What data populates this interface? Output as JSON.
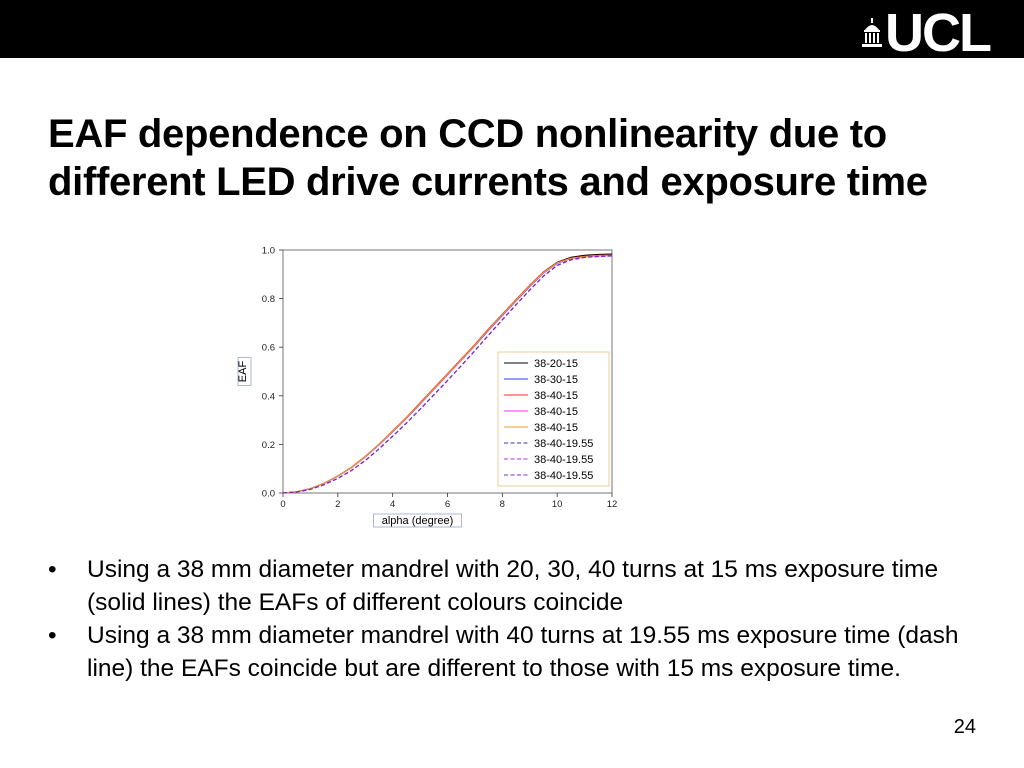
{
  "logo": {
    "text": "UCL",
    "icon": "ucl-portico-icon"
  },
  "slide": {
    "title": "EAF dependence on CCD nonlinearity due to different LED drive currents and exposure time",
    "bullets": [
      "Using a 38 mm diameter mandrel with 20, 30, 40 turns at 15 ms exposure time (solid lines) the EAFs of different colours coincide",
      "Using a 38 mm diameter mandrel with 40 turns at 19.55 ms exposure time (dash line) the EAFs coincide but are different to those with 15 ms exposure time."
    ],
    "bullet_symbol": "•",
    "page_number": "24"
  },
  "chart_data": {
    "type": "line",
    "xlabel": "alpha (degree)",
    "ylabel": "EAF",
    "xlim": [
      0,
      12
    ],
    "ylim": [
      0,
      1.0
    ],
    "xticks": [
      "0",
      "2",
      "4",
      "6",
      "8",
      "10",
      "12"
    ],
    "yticks": [
      "0.0",
      "0.2",
      "0.4",
      "0.6",
      "0.8",
      "1.0"
    ],
    "grid": false,
    "legend_position": "lower-right",
    "x": [
      0,
      0.5,
      1,
      1.5,
      2,
      2.5,
      3,
      3.5,
      4,
      4.5,
      5,
      5.5,
      6,
      6.5,
      7,
      7.5,
      8,
      8.5,
      9,
      9.5,
      10,
      10.5,
      11,
      11.5,
      12
    ],
    "series": [
      {
        "name": "38-20-15",
        "color": "#000000",
        "dash": false,
        "values": [
          0,
          0.005,
          0.018,
          0.04,
          0.07,
          0.105,
          0.15,
          0.2,
          0.255,
          0.31,
          0.37,
          0.43,
          0.49,
          0.55,
          0.61,
          0.675,
          0.735,
          0.795,
          0.855,
          0.91,
          0.95,
          0.97,
          0.978,
          0.982,
          0.983
        ]
      },
      {
        "name": "38-30-15",
        "color": "#2a3ff0",
        "dash": false,
        "values": [
          0,
          0.005,
          0.018,
          0.04,
          0.069,
          0.104,
          0.148,
          0.198,
          0.252,
          0.307,
          0.366,
          0.426,
          0.486,
          0.546,
          0.606,
          0.67,
          0.73,
          0.79,
          0.85,
          0.905,
          0.945,
          0.965,
          0.973,
          0.977,
          0.978
        ]
      },
      {
        "name": "38-40-15",
        "color": "#ff2a2a",
        "dash": false,
        "values": [
          0,
          0.005,
          0.018,
          0.04,
          0.07,
          0.106,
          0.151,
          0.201,
          0.256,
          0.311,
          0.371,
          0.431,
          0.491,
          0.551,
          0.611,
          0.676,
          0.736,
          0.796,
          0.856,
          0.909,
          0.948,
          0.967,
          0.974,
          0.978,
          0.979
        ]
      },
      {
        "name": "38-40-15",
        "color": "#ff2aff",
        "dash": false,
        "values": [
          0,
          0.005,
          0.018,
          0.039,
          0.069,
          0.104,
          0.149,
          0.199,
          0.253,
          0.308,
          0.367,
          0.427,
          0.487,
          0.547,
          0.607,
          0.672,
          0.732,
          0.792,
          0.852,
          0.906,
          0.946,
          0.965,
          0.972,
          0.976,
          0.977
        ]
      },
      {
        "name": "38-40-15",
        "color": "#e89a2a",
        "dash": false,
        "values": [
          0,
          0.005,
          0.018,
          0.04,
          0.07,
          0.105,
          0.15,
          0.2,
          0.254,
          0.309,
          0.368,
          0.428,
          0.488,
          0.548,
          0.608,
          0.673,
          0.733,
          0.793,
          0.853,
          0.907,
          0.947,
          0.966,
          0.973,
          0.977,
          0.978
        ]
      },
      {
        "name": "38-40-19.55",
        "color": "#4a2ab0",
        "dash": true,
        "values": [
          0,
          0.004,
          0.015,
          0.034,
          0.06,
          0.093,
          0.134,
          0.182,
          0.234,
          0.288,
          0.345,
          0.404,
          0.463,
          0.524,
          0.586,
          0.65,
          0.713,
          0.775,
          0.836,
          0.893,
          0.937,
          0.96,
          0.97,
          0.974,
          0.976
        ]
      },
      {
        "name": "38-40-19.55",
        "color": "#b02ae0",
        "dash": true,
        "values": [
          0,
          0.004,
          0.015,
          0.034,
          0.06,
          0.092,
          0.133,
          0.181,
          0.233,
          0.287,
          0.344,
          0.403,
          0.462,
          0.523,
          0.585,
          0.649,
          0.712,
          0.774,
          0.835,
          0.892,
          0.936,
          0.959,
          0.969,
          0.973,
          0.975
        ]
      },
      {
        "name": "38-40-19.55",
        "color": "#7a2ad0",
        "dash": true,
        "values": [
          0,
          0.004,
          0.015,
          0.034,
          0.06,
          0.093,
          0.134,
          0.182,
          0.234,
          0.288,
          0.345,
          0.404,
          0.463,
          0.524,
          0.586,
          0.65,
          0.713,
          0.775,
          0.836,
          0.893,
          0.937,
          0.96,
          0.97,
          0.974,
          0.976
        ]
      }
    ]
  }
}
